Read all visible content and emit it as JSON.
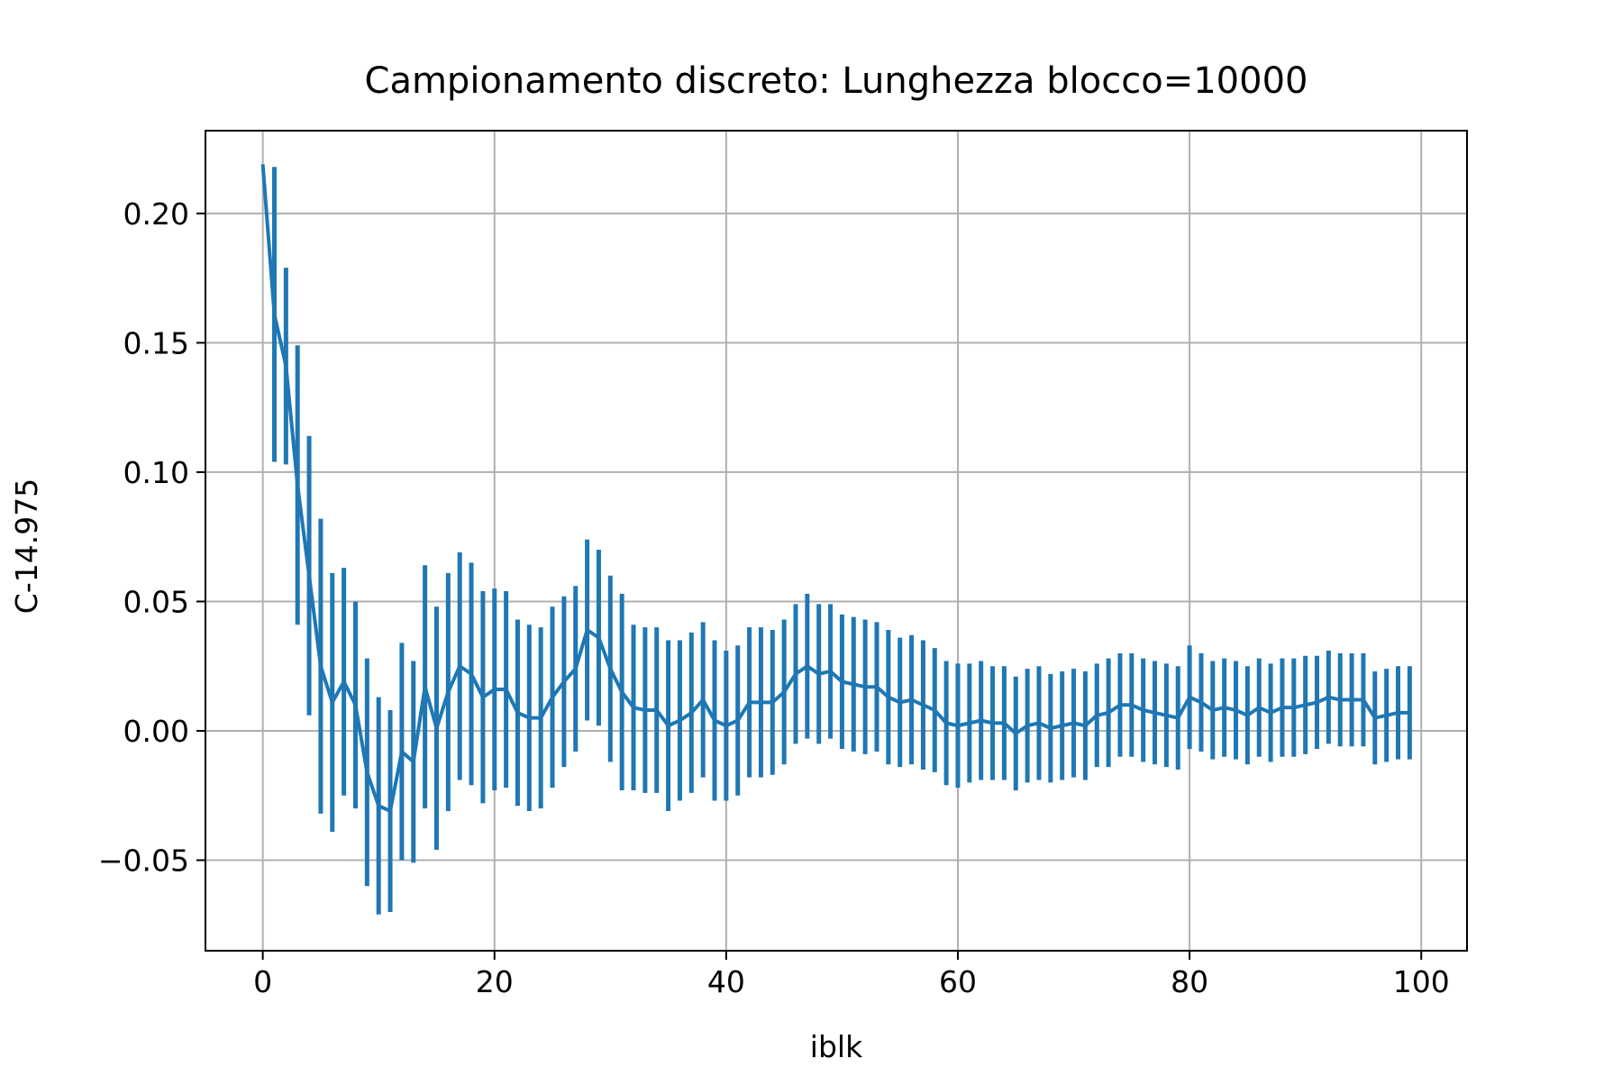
{
  "chart_data": {
    "type": "line",
    "title": "Campionamento discreto: Lunghezza blocco=10000",
    "xlabel": "iblk",
    "ylabel": "C-14.975",
    "xlim": [
      -4.95,
      103.95
    ],
    "ylim": [
      -0.085,
      0.232
    ],
    "x_ticks": [
      0,
      20,
      40,
      60,
      80,
      100
    ],
    "x_tick_labels": [
      "0",
      "20",
      "40",
      "60",
      "80",
      "100"
    ],
    "y_ticks": [
      -0.05,
      0.0,
      0.05,
      0.1,
      0.15,
      0.2
    ],
    "y_tick_labels": [
      "−0.05",
      "0.00",
      "0.05",
      "0.10",
      "0.15",
      "0.20"
    ],
    "grid": true,
    "error_bars": true,
    "series": [
      {
        "color": "#1f77b4",
        "x": [
          0,
          1,
          2,
          3,
          4,
          5,
          6,
          7,
          8,
          9,
          10,
          11,
          12,
          13,
          14,
          15,
          16,
          17,
          18,
          19,
          20,
          21,
          22,
          23,
          24,
          25,
          26,
          27,
          28,
          29,
          30,
          31,
          32,
          33,
          34,
          35,
          36,
          37,
          38,
          39,
          40,
          41,
          42,
          43,
          44,
          45,
          46,
          47,
          48,
          49,
          50,
          51,
          52,
          53,
          54,
          55,
          56,
          57,
          58,
          59,
          60,
          61,
          62,
          63,
          64,
          65,
          66,
          67,
          68,
          69,
          70,
          71,
          72,
          73,
          74,
          75,
          76,
          77,
          78,
          79,
          80,
          81,
          82,
          83,
          84,
          85,
          86,
          87,
          88,
          89,
          90,
          91,
          92,
          93,
          94,
          95,
          96,
          97,
          98,
          99
        ],
        "y": [
          0.219,
          0.161,
          0.141,
          0.095,
          0.06,
          0.025,
          0.011,
          0.019,
          0.01,
          -0.016,
          -0.029,
          -0.031,
          -0.008,
          -0.012,
          0.017,
          0.001,
          0.015,
          0.025,
          0.022,
          0.013,
          0.016,
          0.016,
          0.007,
          0.005,
          0.005,
          0.013,
          0.019,
          0.024,
          0.039,
          0.036,
          0.024,
          0.015,
          0.009,
          0.008,
          0.008,
          0.002,
          0.004,
          0.007,
          0.012,
          0.004,
          0.002,
          0.004,
          0.011,
          0.011,
          0.011,
          0.015,
          0.022,
          0.025,
          0.022,
          0.023,
          0.019,
          0.018,
          0.017,
          0.017,
          0.013,
          0.011,
          0.012,
          0.01,
          0.008,
          0.003,
          0.002,
          0.003,
          0.004,
          0.003,
          0.003,
          -0.001,
          0.002,
          0.003,
          0.001,
          0.002,
          0.003,
          0.002,
          0.006,
          0.007,
          0.01,
          0.01,
          0.008,
          0.007,
          0.006,
          0.005,
          0.013,
          0.011,
          0.008,
          0.009,
          0.008,
          0.006,
          0.009,
          0.007,
          0.009,
          0.009,
          0.01,
          0.011,
          0.013,
          0.012,
          0.012,
          0.012,
          0.005,
          0.006,
          0.007,
          0.007
        ],
        "err": [
          0.0,
          0.057,
          0.038,
          0.054,
          0.054,
          0.057,
          0.05,
          0.044,
          0.04,
          0.044,
          0.042,
          0.039,
          0.042,
          0.039,
          0.047,
          0.047,
          0.046,
          0.044,
          0.043,
          0.041,
          0.039,
          0.038,
          0.036,
          0.036,
          0.035,
          0.035,
          0.033,
          0.032,
          0.035,
          0.034,
          0.036,
          0.038,
          0.032,
          0.032,
          0.032,
          0.033,
          0.031,
          0.031,
          0.03,
          0.031,
          0.029,
          0.029,
          0.029,
          0.029,
          0.028,
          0.028,
          0.027,
          0.028,
          0.027,
          0.026,
          0.026,
          0.026,
          0.026,
          0.025,
          0.026,
          0.025,
          0.025,
          0.025,
          0.024,
          0.024,
          0.024,
          0.023,
          0.023,
          0.022,
          0.022,
          0.022,
          0.022,
          0.022,
          0.021,
          0.021,
          0.021,
          0.021,
          0.02,
          0.021,
          0.02,
          0.02,
          0.02,
          0.02,
          0.02,
          0.02,
          0.02,
          0.019,
          0.019,
          0.019,
          0.019,
          0.019,
          0.019,
          0.019,
          0.019,
          0.019,
          0.019,
          0.018,
          0.018,
          0.018,
          0.018,
          0.018,
          0.018,
          0.018,
          0.018,
          0.018
        ]
      }
    ]
  }
}
